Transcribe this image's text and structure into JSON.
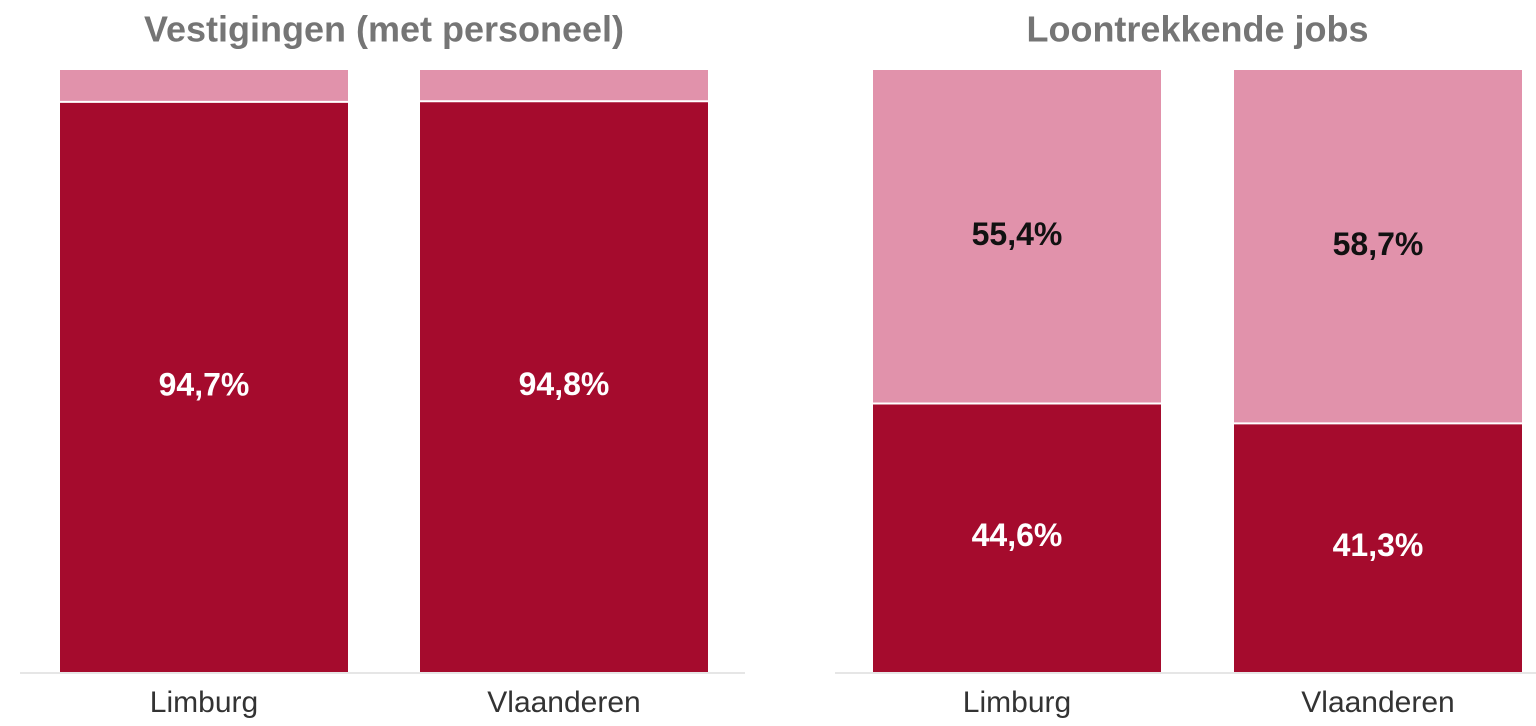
{
  "chart_data": [
    {
      "type": "stacked-bar",
      "title": "Vestigingen (met personeel)",
      "categories": [
        "Limburg",
        "Vlaanderen"
      ],
      "series": [
        {
          "color": "#a50b2d",
          "values": [
            94.7,
            94.8
          ],
          "value_labels": [
            "94,7%",
            "94,8%"
          ]
        },
        {
          "color": "#e192ab",
          "values": [
            5.3,
            5.2
          ]
        }
      ],
      "ylim": [
        0,
        100
      ]
    },
    {
      "type": "stacked-bar",
      "title": "Loontrekkende jobs",
      "categories": [
        "Limburg",
        "Vlaanderen"
      ],
      "series": [
        {
          "color": "#a50b2d",
          "values": [
            44.6,
            41.3
          ],
          "value_labels": [
            "44,6%",
            "41,3%"
          ]
        },
        {
          "color": "#e192ab",
          "values": [
            55.4,
            58.7
          ],
          "value_labels": [
            "55,4%",
            "58,7%"
          ]
        }
      ],
      "ylim": [
        0,
        100
      ]
    }
  ]
}
